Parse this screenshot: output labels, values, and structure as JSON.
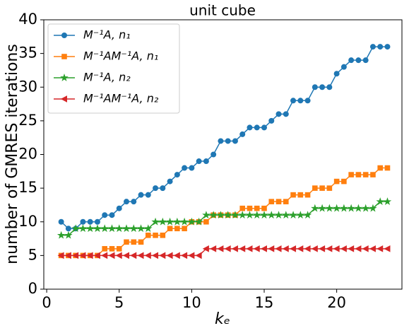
{
  "chart_data": {
    "type": "line",
    "title": "unit cube",
    "x_label": "kₑ",
    "y_label": "number of GMRES iterations",
    "x": [
      1,
      1.5,
      2,
      2.5,
      3,
      3.5,
      4,
      4.5,
      5,
      5.5,
      6,
      6.5,
      7,
      7.5,
      8,
      8.5,
      9,
      9.5,
      10,
      10.5,
      11,
      11.5,
      12,
      12.5,
      13,
      13.5,
      14,
      14.5,
      15,
      15.5,
      16,
      16.5,
      17,
      17.5,
      18,
      18.5,
      19,
      19.5,
      20,
      20.5,
      21,
      21.5,
      22,
      22.5,
      23,
      23.5
    ],
    "series": [
      {
        "name": "M⁻¹A, n₁",
        "color": "#1f77b4",
        "marker": "circle",
        "values": [
          10,
          9,
          9,
          10,
          10,
          10,
          11,
          11,
          12,
          13,
          13,
          14,
          14,
          15,
          15,
          16,
          17,
          18,
          18,
          19,
          19,
          20,
          22,
          22,
          22,
          23,
          24,
          24,
          24,
          25,
          26,
          26,
          28,
          28,
          28,
          30,
          30,
          30,
          32,
          33,
          34,
          34,
          34,
          36,
          36,
          36
        ]
      },
      {
        "name": "M⁻¹AM⁻¹A, n₁",
        "color": "#ff7f0e",
        "marker": "square",
        "values": [
          5,
          5,
          5,
          5,
          5,
          5,
          6,
          6,
          6,
          7,
          7,
          7,
          8,
          8,
          8,
          9,
          9,
          9,
          10,
          10,
          10,
          11,
          11,
          11,
          11,
          12,
          12,
          12,
          12,
          13,
          13,
          13,
          14,
          14,
          14,
          15,
          15,
          15,
          16,
          16,
          17,
          17,
          17,
          17,
          18,
          18
        ]
      },
      {
        "name": "M⁻¹A, n₂",
        "color": "#2ca02c",
        "marker": "star",
        "values": [
          8,
          8,
          9,
          9,
          9,
          9,
          9,
          9,
          9,
          9,
          9,
          9,
          9,
          10,
          10,
          10,
          10,
          10,
          10,
          10,
          11,
          11,
          11,
          11,
          11,
          11,
          11,
          11,
          11,
          11,
          11,
          11,
          11,
          11,
          11,
          12,
          12,
          12,
          12,
          12,
          12,
          12,
          12,
          12,
          13,
          13
        ]
      },
      {
        "name": "M⁻¹AM⁻¹A, n₂",
        "color": "#d62728",
        "marker": "triangle-left",
        "values": [
          5,
          5,
          5,
          5,
          5,
          5,
          5,
          5,
          5,
          5,
          5,
          5,
          5,
          5,
          5,
          5,
          5,
          5,
          5,
          5,
          6,
          6,
          6,
          6,
          6,
          6,
          6,
          6,
          6,
          6,
          6,
          6,
          6,
          6,
          6,
          6,
          6,
          6,
          6,
          6,
          6,
          6,
          6,
          6,
          6,
          6
        ]
      }
    ],
    "xlim": [
      -0.2,
      24.5
    ],
    "ylim": [
      0,
      40
    ],
    "xticks": [
      0,
      5,
      10,
      15,
      20
    ],
    "yticks": [
      0,
      5,
      10,
      15,
      20,
      25,
      30,
      35,
      40
    ],
    "legend": "upper left"
  }
}
